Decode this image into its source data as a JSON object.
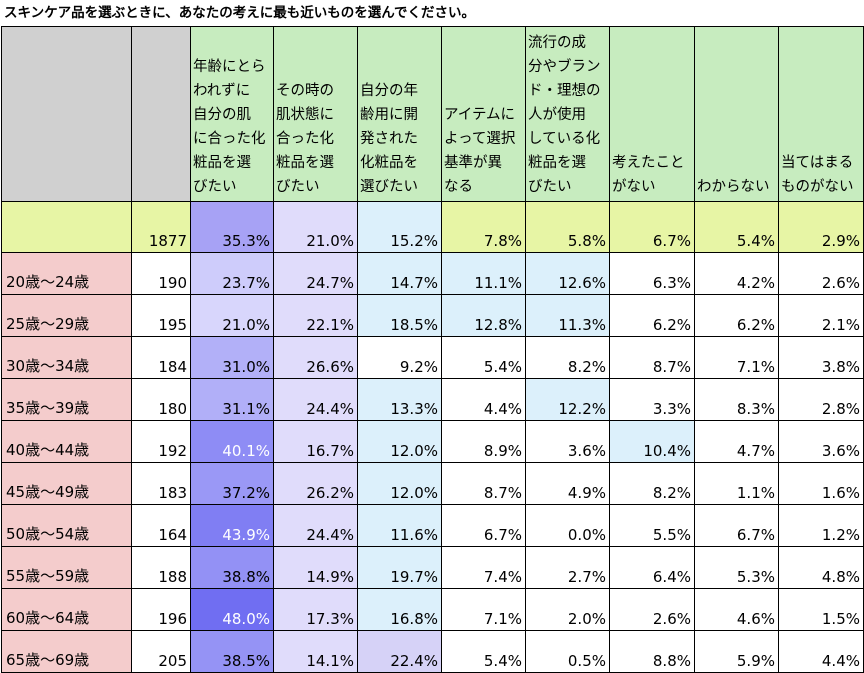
{
  "title": "スキンケア品を選ぶときに、あなたの考えに最も近いものを選んでください。",
  "chart_data": {
    "type": "table",
    "columns": [
      [
        "年齢にとら",
        "われずに",
        "自分の肌",
        "に合った化",
        "粧品を選",
        "びたい"
      ],
      [
        "その時の",
        "肌状態に",
        "合った化",
        "粧品を選",
        "びたい"
      ],
      [
        "自分の年",
        "齢用に開",
        "発された",
        "化粧品を",
        "選びたい"
      ],
      [
        "アイテムに",
        "よって選択",
        "基準が異",
        "なる"
      ],
      [
        "流行の成",
        "分やブラン",
        "ド・理想の",
        "人が使用",
        "している化",
        "粧品を選",
        "びたい"
      ],
      [
        "考えたこと",
        "がない"
      ],
      [
        "わからない"
      ],
      [
        "当てはまる",
        "ものがない"
      ]
    ],
    "total": {
      "label": "",
      "n": "1877",
      "values": [
        "35.3%",
        "21.0%",
        "15.2%",
        "7.8%",
        "5.8%",
        "6.7%",
        "5.4%",
        "2.9%"
      ]
    },
    "rows": [
      {
        "label": "20歳～24歳",
        "n": "190",
        "values": [
          "23.7%",
          "24.7%",
          "14.7%",
          "11.1%",
          "12.6%",
          "6.3%",
          "4.2%",
          "2.6%"
        ]
      },
      {
        "label": "25歳～29歳",
        "n": "195",
        "values": [
          "21.0%",
          "22.1%",
          "18.5%",
          "12.8%",
          "11.3%",
          "6.2%",
          "6.2%",
          "2.1%"
        ]
      },
      {
        "label": "30歳～34歳",
        "n": "184",
        "values": [
          "31.0%",
          "26.6%",
          "9.2%",
          "5.4%",
          "8.2%",
          "8.7%",
          "7.1%",
          "3.8%"
        ]
      },
      {
        "label": "35歳～39歳",
        "n": "180",
        "values": [
          "31.1%",
          "24.4%",
          "13.3%",
          "4.4%",
          "12.2%",
          "3.3%",
          "8.3%",
          "2.8%"
        ]
      },
      {
        "label": "40歳～44歳",
        "n": "192",
        "values": [
          "40.1%",
          "16.7%",
          "12.0%",
          "8.9%",
          "3.6%",
          "10.4%",
          "4.7%",
          "3.6%"
        ]
      },
      {
        "label": "45歳～49歳",
        "n": "183",
        "values": [
          "37.2%",
          "26.2%",
          "12.0%",
          "8.7%",
          "4.9%",
          "8.2%",
          "1.1%",
          "1.6%"
        ]
      },
      {
        "label": "50歳～54歳",
        "n": "164",
        "values": [
          "43.9%",
          "24.4%",
          "11.6%",
          "6.7%",
          "0.0%",
          "5.5%",
          "6.7%",
          "1.2%"
        ]
      },
      {
        "label": "55歳～59歳",
        "n": "188",
        "values": [
          "38.8%",
          "14.9%",
          "19.7%",
          "7.4%",
          "2.7%",
          "6.4%",
          "5.3%",
          "4.8%"
        ]
      },
      {
        "label": "60歳～64歳",
        "n": "196",
        "values": [
          "48.0%",
          "17.3%",
          "16.8%",
          "7.1%",
          "2.0%",
          "2.6%",
          "4.6%",
          "1.5%"
        ]
      },
      {
        "label": "65歳～69歳",
        "n": "205",
        "values": [
          "38.5%",
          "14.1%",
          "22.4%",
          "5.4%",
          "0.5%",
          "8.8%",
          "5.9%",
          "4.4%"
        ]
      }
    ]
  }
}
